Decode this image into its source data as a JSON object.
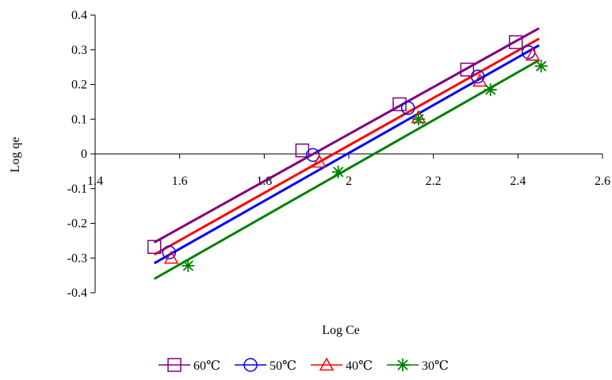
{
  "chart_data": {
    "type": "scatter",
    "title": "",
    "xlabel": "Log Ce",
    "ylabel": "Log qe",
    "xlim": [
      1.4,
      2.6
    ],
    "ylim": [
      -0.4,
      0.4
    ],
    "xticks": [
      1.4,
      1.6,
      1.8,
      2.0,
      2.2,
      2.4,
      2.6
    ],
    "xtick_labels": [
      "1.4",
      "1.6",
      "1.8",
      "2",
      "2.2",
      "2.4",
      "2.6"
    ],
    "yticks": [
      0.4,
      0.3,
      0.2,
      0.1,
      0,
      -0.1,
      -0.2,
      -0.3,
      -0.4
    ],
    "ytick_labels": [
      "0.4",
      "0.3",
      "0.2",
      "0.1",
      "0",
      "-0.1",
      "-0.2",
      "-0.3",
      "-0.4"
    ],
    "grid": false,
    "legend_position": "bottom",
    "series": [
      {
        "name": "60℃",
        "color": "#800080",
        "marker": "square",
        "points": [
          [
            1.54,
            -0.268
          ],
          [
            1.89,
            0.01
          ],
          [
            2.12,
            0.143
          ],
          [
            2.28,
            0.243
          ],
          [
            2.395,
            0.322
          ]
        ],
        "trendline": [
          [
            1.54,
            -0.255
          ],
          [
            2.45,
            0.362
          ]
        ]
      },
      {
        "name": "50℃",
        "color": "#0000ff",
        "marker": "circle",
        "points": [
          [
            1.575,
            -0.284
          ],
          [
            1.915,
            -0.003
          ],
          [
            2.14,
            0.132
          ],
          [
            2.305,
            0.223
          ],
          [
            2.425,
            0.293
          ]
        ],
        "trendline": [
          [
            1.54,
            -0.315
          ],
          [
            2.45,
            0.313
          ]
        ]
      },
      {
        "name": "40℃",
        "color": "#ff0000",
        "marker": "triangle",
        "points": [
          [
            1.58,
            -0.3
          ],
          [
            1.93,
            -0.023
          ],
          [
            2.165,
            0.105
          ],
          [
            2.31,
            0.21
          ],
          [
            2.435,
            0.285
          ]
        ],
        "trendline": [
          [
            1.54,
            -0.29
          ],
          [
            2.45,
            0.332
          ]
        ]
      },
      {
        "name": "30℃",
        "color": "#008000",
        "marker": "star",
        "points": [
          [
            1.62,
            -0.322
          ],
          [
            1.975,
            -0.052
          ],
          [
            2.165,
            0.1
          ],
          [
            2.335,
            0.185
          ],
          [
            2.455,
            0.253
          ]
        ],
        "trendline": [
          [
            1.54,
            -0.36
          ],
          [
            2.45,
            0.27
          ]
        ]
      }
    ]
  }
}
